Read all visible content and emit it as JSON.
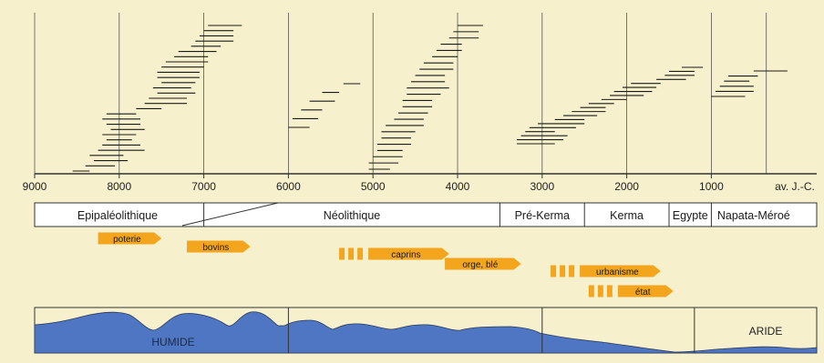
{
  "axis": {
    "ticks": [
      {
        "year": 9000,
        "label": "9000"
      },
      {
        "year": 8000,
        "label": "8000"
      },
      {
        "year": 7000,
        "label": "7000"
      },
      {
        "year": 6000,
        "label": "6000"
      },
      {
        "year": 5000,
        "label": "5000"
      },
      {
        "year": 4000,
        "label": "4000"
      },
      {
        "year": 3000,
        "label": "3000"
      },
      {
        "year": 2000,
        "label": "2000"
      },
      {
        "year": 1000,
        "label": "1000"
      }
    ],
    "era_label": "av. J.-C."
  },
  "periods": [
    {
      "name": "Epipaléolithique",
      "start": 9000,
      "end": 7000
    },
    {
      "name": "Néolithique",
      "start": 7000,
      "end": 3500
    },
    {
      "name": "Pré-Kerma",
      "start": 3500,
      "end": 2500
    },
    {
      "name": "Kerma",
      "start": 2500,
      "end": 1500
    },
    {
      "name": "Egypte",
      "start": 1500,
      "end": 1000
    },
    {
      "name": "Napata-Méroé",
      "start": 1000,
      "end": 0
    }
  ],
  "innovations": [
    {
      "label": "poterie",
      "start": 8250,
      "end": 7500,
      "lead": false
    },
    {
      "label": "bovins",
      "start": 7200,
      "end": 6450,
      "lead": false
    },
    {
      "label": "caprins",
      "start": 5400,
      "end": 4100,
      "lead": true
    },
    {
      "label": "orge, blé",
      "start": 4150,
      "end": 3250,
      "lead": false
    },
    {
      "label": "urbanisme",
      "start": 2900,
      "end": 1600,
      "lead": true
    },
    {
      "label": "état",
      "start": 2450,
      "end": 1450,
      "lead": true
    }
  ],
  "climate": {
    "labels": [
      "HUMIDE",
      "ARIDE"
    ],
    "dividers": [
      6000,
      3000,
      1200
    ]
  },
  "dating_groups": [
    [
      [
        8550,
        8350
      ],
      [
        8400,
        8050
      ],
      [
        8300,
        7900
      ],
      [
        8350,
        7950
      ],
      [
        8250,
        7700
      ],
      [
        8200,
        7750
      ],
      [
        8150,
        7850
      ],
      [
        8200,
        7800
      ],
      [
        8100,
        7700
      ],
      [
        8150,
        7750
      ],
      [
        8200,
        7750
      ],
      [
        8150,
        7800
      ],
      [
        7800,
        7500
      ],
      [
        7700,
        7200
      ],
      [
        7650,
        7200
      ],
      [
        7550,
        7100
      ],
      [
        7600,
        7150
      ],
      [
        7500,
        7100
      ],
      [
        7550,
        7050
      ],
      [
        7550,
        7050
      ],
      [
        7500,
        7000
      ],
      [
        7450,
        6950
      ],
      [
        7350,
        6950
      ],
      [
        7300,
        6850
      ],
      [
        7150,
        6800
      ],
      [
        7100,
        6650
      ],
      [
        7050,
        6650
      ],
      [
        7000,
        6650
      ],
      [
        6950,
        6550
      ]
    ],
    [
      [
        6000,
        5750
      ],
      [
        5950,
        5650
      ],
      [
        5850,
        5600
      ],
      [
        5750,
        5450
      ],
      [
        5600,
        5400
      ],
      [
        5350,
        5150
      ]
    ],
    [
      [
        5050,
        4800
      ],
      [
        5050,
        4700
      ],
      [
        5000,
        4650
      ],
      [
        4950,
        4650
      ],
      [
        4950,
        4550
      ],
      [
        4900,
        4550
      ],
      [
        4900,
        4500
      ],
      [
        4850,
        4400
      ],
      [
        4750,
        4400
      ],
      [
        4700,
        4350
      ],
      [
        4650,
        4300
      ],
      [
        4650,
        4300
      ],
      [
        4600,
        4200
      ],
      [
        4600,
        4100
      ],
      [
        4550,
        4150
      ],
      [
        4500,
        4150
      ],
      [
        4450,
        4050
      ],
      [
        4400,
        4050
      ],
      [
        4300,
        4000
      ],
      [
        4250,
        3950
      ],
      [
        4200,
        3950
      ],
      [
        4100,
        3750
      ],
      [
        4050,
        3750
      ],
      [
        4000,
        3700
      ]
    ],
    [
      [
        3300,
        2850
      ],
      [
        3300,
        2750
      ],
      [
        3250,
        2700
      ],
      [
        3200,
        2850
      ],
      [
        3150,
        2600
      ],
      [
        3050,
        2500
      ],
      [
        2850,
        2500
      ],
      [
        2750,
        2350
      ],
      [
        2650,
        2250
      ],
      [
        2550,
        2250
      ],
      [
        2450,
        2150
      ],
      [
        2300,
        2000
      ],
      [
        2200,
        1800
      ],
      [
        2150,
        1700
      ],
      [
        2050,
        1650
      ],
      [
        1950,
        1600
      ],
      [
        1650,
        1300
      ],
      [
        1550,
        1200
      ],
      [
        1500,
        1200
      ],
      [
        1350,
        1100
      ]
    ],
    [
      [
        1000,
        600
      ],
      [
        950,
        500
      ],
      [
        900,
        500
      ],
      [
        850,
        550
      ],
      [
        800,
        450
      ],
      [
        500,
        100
      ]
    ]
  ]
}
